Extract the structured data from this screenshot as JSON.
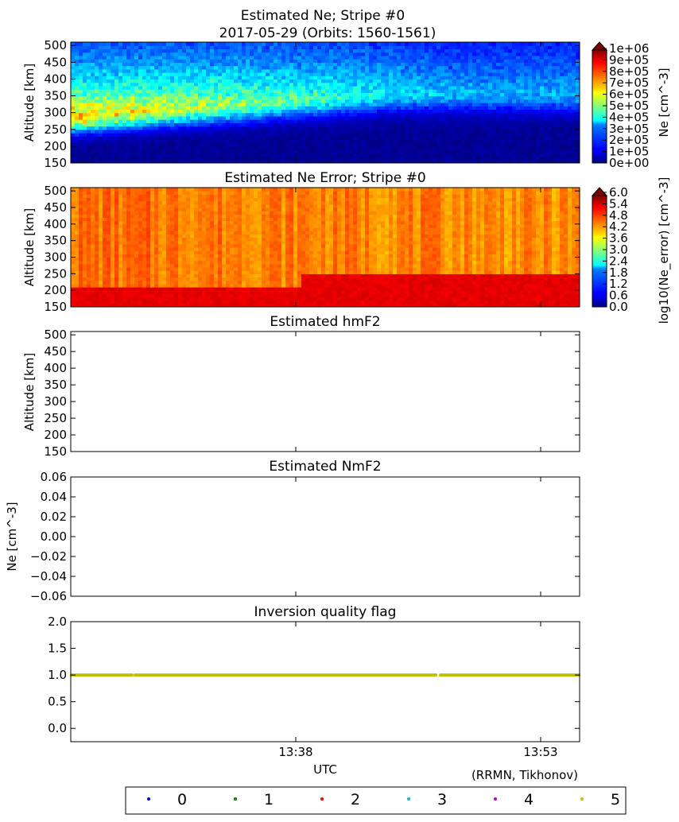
{
  "figure": {
    "credit": "(RRMN, Tikhonov)",
    "xlabel": "UTC",
    "time_ticks": [
      "13:38",
      "13:53"
    ]
  },
  "chart_data": [
    {
      "type": "heatmap",
      "title": "Estimated Ne; Stripe #0",
      "subtitle": "2017-05-29 (Orbits: 1560-1561)",
      "ylabel": "Altitude [km]",
      "ylim": [
        150,
        510
      ],
      "yticks": [
        "150",
        "200",
        "250",
        "300",
        "350",
        "400",
        "450",
        "500"
      ],
      "colorbar": {
        "label": "Ne [cm^-3]",
        "colormap": "jet",
        "range": [
          0,
          1000000
        ],
        "ticks": [
          "0e+00",
          "1e+05",
          "2e+05",
          "3e+05",
          "4e+05",
          "5e+05",
          "6e+05",
          "7e+05",
          "8e+05",
          "9e+05",
          "1e+06"
        ]
      },
      "description_values": {
        "peak_altitude_start_km": 290,
        "peak_altitude_end_km": 360,
        "peak_ne_start": 650000,
        "peak_ne_end": 280000
      }
    },
    {
      "type": "heatmap",
      "title": "Estimated Ne Error; Stripe #0",
      "ylabel": "Altitude [km]",
      "ylim": [
        150,
        510
      ],
      "yticks": [
        "150",
        "200",
        "250",
        "300",
        "350",
        "400",
        "450",
        "500"
      ],
      "colorbar": {
        "label": "log10(Ne_error) [cm^-3]",
        "colormap": "jet",
        "range": [
          0,
          6
        ],
        "ticks": [
          "0.0",
          "0.6",
          "1.2",
          "1.8",
          "2.4",
          "3.0",
          "3.6",
          "4.2",
          "4.8",
          "5.4",
          "6.0"
        ]
      },
      "description_values": {
        "low_altitude_boundary_km": 210,
        "low_altitude_value": 5.4,
        "upper_value": 4.6
      }
    },
    {
      "type": "scatter",
      "title": "Estimated hmF2",
      "ylabel": "Altitude [km]",
      "ylim": [
        150,
        510
      ],
      "yticks": [
        "150",
        "200",
        "250",
        "300",
        "350",
        "400",
        "450",
        "500"
      ],
      "points": []
    },
    {
      "type": "scatter",
      "title": "Estimated NmF2",
      "ylabel": "Ne [cm^-3]",
      "ylim": [
        -0.06,
        0.06
      ],
      "yticks": [
        "0.06",
        "0.04",
        "0.02",
        "0.00",
        "−0.02",
        "−0.04",
        "−0.06"
      ],
      "points": []
    },
    {
      "type": "scatter",
      "title": "Inversion quality flag",
      "ylim": [
        -0.25,
        2.0
      ],
      "yticks": [
        "2.0",
        "1.5",
        "1.0",
        "0.5",
        "0.0"
      ],
      "series": [
        {
          "name": "5",
          "flag_value": 1.0,
          "color": "#bfbf00"
        }
      ]
    }
  ],
  "legend": {
    "entries": [
      {
        "label": "0",
        "color": "#0000ff"
      },
      {
        "label": "1",
        "color": "#008000"
      },
      {
        "label": "2",
        "color": "#ff0000"
      },
      {
        "label": "3",
        "color": "#00bfbf"
      },
      {
        "label": "4",
        "color": "#bf00bf"
      },
      {
        "label": "5",
        "color": "#bfbf00"
      }
    ]
  }
}
